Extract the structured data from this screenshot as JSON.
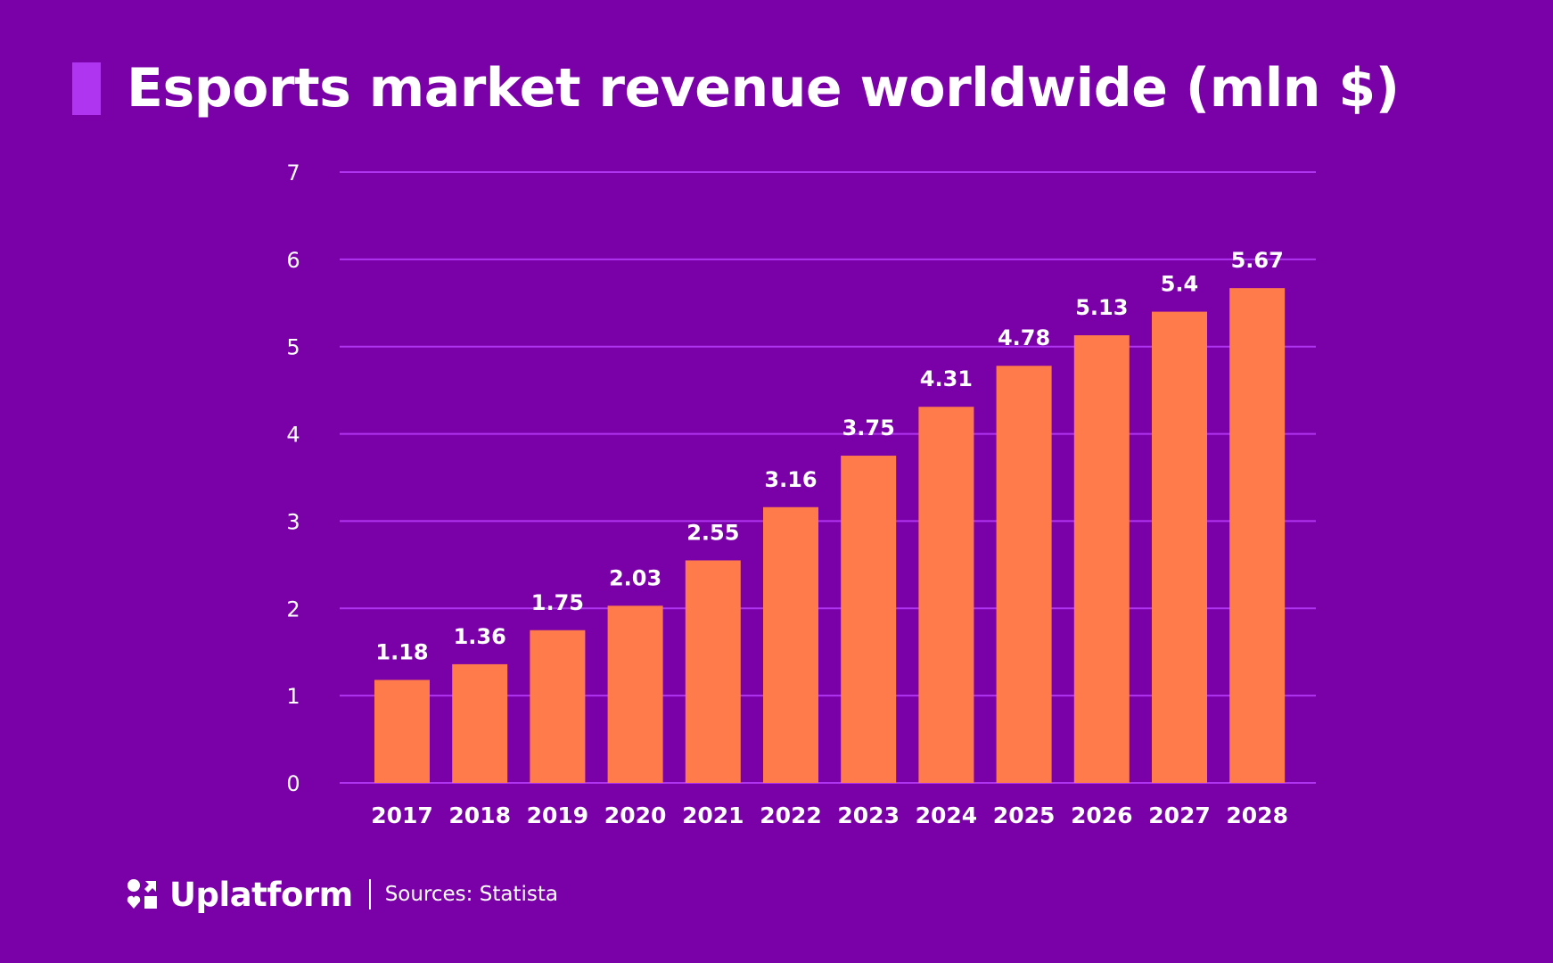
{
  "title": "Esports market revenue worldwide (mln $)",
  "colors": {
    "background": "#7a00a8",
    "accent": "#b035f0",
    "bar": "#ff7b4c",
    "grid": "#b035f0",
    "text": "#ffffff"
  },
  "footer": {
    "brand": "Uplatform",
    "logo_icon": "uplatform-logo-icon",
    "source": "Sources: Statista"
  },
  "chart_data": {
    "type": "bar",
    "title": "Esports market revenue worldwide (mln $)",
    "xlabel": "",
    "ylabel": "",
    "categories": [
      "2017",
      "2018",
      "2019",
      "2020",
      "2021",
      "2022",
      "2023",
      "2024",
      "2025",
      "2026",
      "2027",
      "2028"
    ],
    "values": [
      1.18,
      1.36,
      1.75,
      2.03,
      2.55,
      3.16,
      3.75,
      4.31,
      4.78,
      5.13,
      5.4,
      5.67
    ],
    "value_labels": [
      "1.18",
      "1.36",
      "1.75",
      "2.03",
      "2.55",
      "3.16",
      "3.75",
      "4.31",
      "4.78",
      "5.13",
      "5.4",
      "5.67"
    ],
    "ylim": [
      0,
      7
    ],
    "yticks": [
      0,
      1,
      2,
      3,
      4,
      5,
      6,
      7
    ],
    "grid": true,
    "legend": "none"
  }
}
